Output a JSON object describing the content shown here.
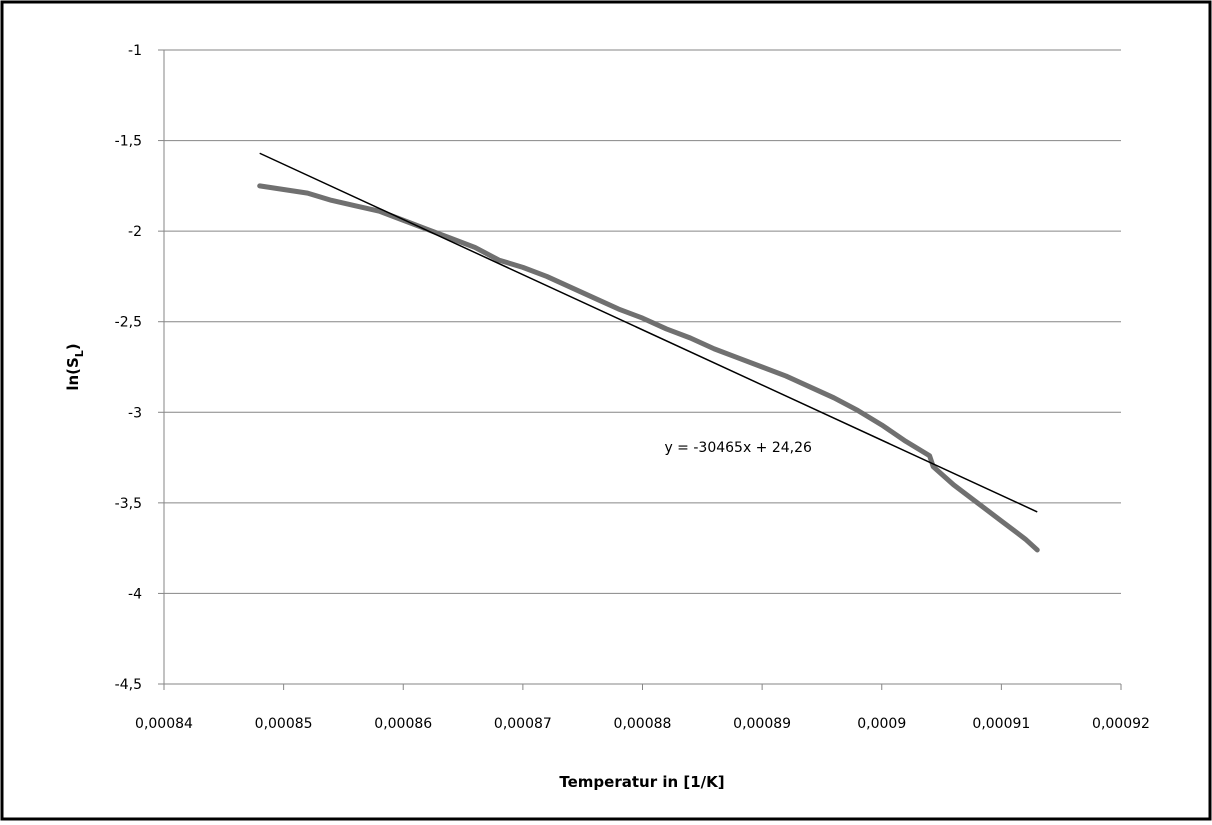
{
  "chart_data": {
    "type": "line",
    "title": "",
    "xlabel": "Temperatur in [1/K]",
    "ylabel_main": "ln(S",
    "ylabel_sub": "L",
    "ylabel_close": ")",
    "xlim": [
      0.00084,
      0.00092
    ],
    "ylim": [
      -4.5,
      -1
    ],
    "grid": "horizontal",
    "x_tick_values": [
      0.00084,
      0.00085,
      0.00086,
      0.00087,
      0.00088,
      0.00089,
      0.0009,
      0.00091,
      0.00092
    ],
    "x_tick_labels": [
      "0,00084",
      "0,00085",
      "0,00086",
      "0,00087",
      "0,00088",
      "0,00089",
      "0,0009",
      "0,00091",
      "0,00092"
    ],
    "y_tick_values": [
      -1,
      -1.5,
      -2,
      -2.5,
      -3,
      -3.5,
      -4,
      -4.5
    ],
    "y_tick_labels": [
      "-1",
      "-1,5",
      "-2",
      "-2,5",
      "-3",
      "-3,5",
      "-4",
      "-4,5"
    ],
    "series": [
      {
        "color": "#707070",
        "x": [
          0.000848,
          0.00085,
          0.000852,
          0.000854,
          0.000856,
          0.000858,
          0.00086,
          0.000862,
          0.000864,
          0.000866,
          0.000868,
          0.00087,
          0.000872,
          0.000874,
          0.000876,
          0.000878,
          0.00088,
          0.000882,
          0.000884,
          0.000886,
          0.000888,
          0.00089,
          0.000892,
          0.000894,
          0.000896,
          0.000898,
          0.0009,
          0.000902,
          0.000904,
          0.0009043,
          0.000906,
          0.000908,
          0.00091,
          0.000912,
          0.000913
        ],
        "values": [
          -1.75,
          -1.77,
          -1.79,
          -1.83,
          -1.86,
          -1.89,
          -1.94,
          -1.99,
          -2.04,
          -2.09,
          -2.16,
          -2.2,
          -2.25,
          -2.31,
          -2.37,
          -2.43,
          -2.48,
          -2.54,
          -2.59,
          -2.65,
          -2.7,
          -2.75,
          -2.8,
          -2.86,
          -2.92,
          -2.99,
          -3.07,
          -3.16,
          -3.24,
          -3.3,
          -3.4,
          -3.5,
          -3.6,
          -3.7,
          -3.76
        ]
      }
    ],
    "trendline": {
      "color": "#000000",
      "x": [
        0.000848,
        0.000913
      ],
      "values": [
        -1.57,
        -3.55
      ],
      "label": "y = -30465x + 24,26",
      "label_x": 0.000888,
      "label_y": -3.22
    }
  }
}
